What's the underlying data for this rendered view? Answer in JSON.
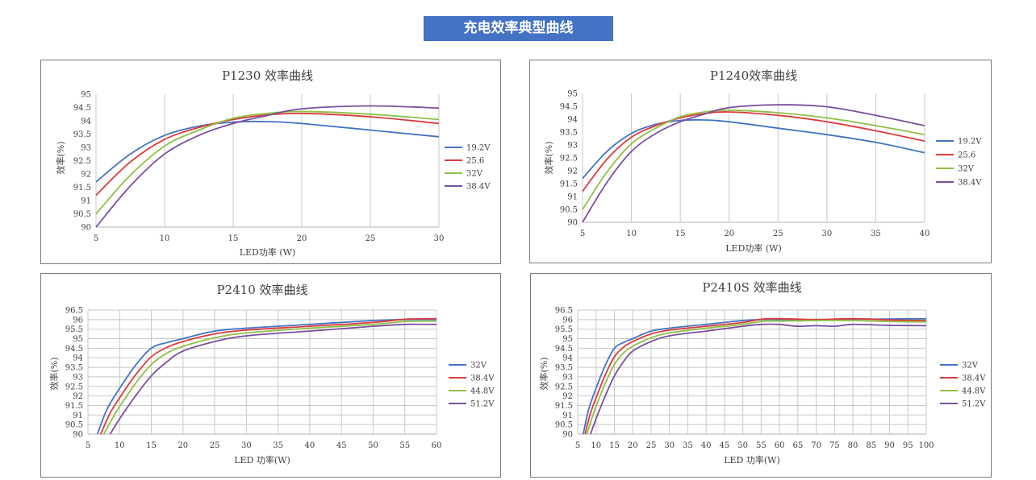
{
  "header": {
    "title": "充电效率典型曲线"
  },
  "chart_data": [
    {
      "type": "line",
      "title": "P1230 效率曲线",
      "xlabel": "LED功率 (W)",
      "ylabel": "效率(%)",
      "xlim": [
        5,
        30
      ],
      "ylim": [
        90,
        95
      ],
      "x_ticks": [
        "5",
        "10",
        "15",
        "20",
        "25",
        "30"
      ],
      "y_ticks": [
        "90",
        "90.5",
        "91",
        "91.5",
        "92",
        "92.5",
        "93",
        "93.5",
        "94",
        "94.5",
        "95"
      ],
      "grid": "vertical",
      "legend": "right",
      "colors": [
        "#4472c4",
        "#dc3b3b",
        "#8fc045",
        "#7a4f9e"
      ],
      "series": [
        {
          "name": "19.2V",
          "x": [
            5,
            7.5,
            10,
            12.5,
            15,
            17.5,
            20,
            25,
            30
          ],
          "values": [
            91.7,
            92.75,
            93.45,
            93.8,
            93.95,
            93.97,
            93.9,
            93.65,
            93.4
          ]
        },
        {
          "name": "25.6",
          "x": [
            5,
            7.5,
            10,
            12.5,
            15,
            17.5,
            20,
            25,
            30
          ],
          "values": [
            91.2,
            92.45,
            93.3,
            93.75,
            94.05,
            94.22,
            94.28,
            94.15,
            93.9
          ]
        },
        {
          "name": "32V",
          "x": [
            5,
            7.5,
            10,
            12.5,
            15,
            17.5,
            20,
            25,
            30
          ],
          "values": [
            90.5,
            91.95,
            93.05,
            93.65,
            94.1,
            94.28,
            94.35,
            94.25,
            94.05
          ]
        },
        {
          "name": "38.4V",
          "x": [
            5,
            7.5,
            10,
            12.5,
            15,
            17.5,
            20,
            25,
            30
          ],
          "values": [
            90.0,
            91.55,
            92.75,
            93.45,
            93.9,
            94.2,
            94.45,
            94.56,
            94.48
          ]
        }
      ]
    },
    {
      "type": "line",
      "title": "P1240效率曲线",
      "xlabel": "LED功率 (W)",
      "ylabel": "效率(%)",
      "xlim": [
        5,
        40
      ],
      "ylim": [
        90,
        95
      ],
      "x_ticks": [
        "5",
        "10",
        "15",
        "20",
        "25",
        "30",
        "35",
        "40"
      ],
      "y_ticks": [
        "90",
        "90.5",
        "91",
        "91.5",
        "92",
        "92.5",
        "93",
        "93.5",
        "94",
        "94.5",
        "95"
      ],
      "grid": "vertical",
      "legend": "right",
      "colors": [
        "#4472c4",
        "#dc3b3b",
        "#8fc045",
        "#7a4f9e"
      ],
      "series": [
        {
          "name": "19.2V",
          "x": [
            5,
            7.5,
            10,
            12.5,
            15,
            17.5,
            20,
            25,
            30,
            35,
            40
          ],
          "values": [
            91.7,
            92.75,
            93.45,
            93.8,
            93.95,
            93.97,
            93.9,
            93.65,
            93.4,
            93.1,
            92.7
          ]
        },
        {
          "name": "25.6",
          "x": [
            5,
            7.5,
            10,
            12.5,
            15,
            17.5,
            20,
            25,
            30,
            35,
            40
          ],
          "values": [
            91.2,
            92.45,
            93.3,
            93.75,
            94.05,
            94.22,
            94.28,
            94.15,
            93.9,
            93.55,
            93.15
          ]
        },
        {
          "name": "32V",
          "x": [
            5,
            7.5,
            10,
            12.5,
            15,
            17.5,
            20,
            25,
            30,
            35,
            40
          ],
          "values": [
            90.5,
            91.95,
            93.05,
            93.65,
            94.1,
            94.28,
            94.35,
            94.25,
            94.05,
            93.75,
            93.4
          ]
        },
        {
          "name": "38.4V",
          "x": [
            5,
            7.5,
            10,
            12.5,
            15,
            17.5,
            20,
            25,
            30,
            35,
            40
          ],
          "values": [
            90.0,
            91.55,
            92.75,
            93.45,
            93.9,
            94.2,
            94.45,
            94.56,
            94.48,
            94.15,
            93.75
          ]
        }
      ]
    },
    {
      "type": "line",
      "title": "P2410 效率曲线",
      "xlabel": "LED 功率(W)",
      "ylabel": "效率(%)",
      "xlim": [
        5,
        60
      ],
      "ylim": [
        90,
        96.5
      ],
      "x_ticks": [
        "5",
        "10",
        "15",
        "20",
        "25",
        "30",
        "35",
        "40",
        "45",
        "50",
        "55",
        "60"
      ],
      "y_ticks": [
        "90",
        "90.5",
        "91",
        "91.5",
        "92",
        "92.5",
        "93",
        "93.5",
        "94",
        "94.5",
        "95",
        "95.5",
        "96",
        "96.5"
      ],
      "grid": "both",
      "legend": "right",
      "colors": [
        "#4472c4",
        "#dc3b3b",
        "#8fc045",
        "#7a4f9e"
      ],
      "series": [
        {
          "name": "32V",
          "x": [
            6.5,
            8,
            10,
            12.5,
            15,
            17.5,
            20,
            25,
            30,
            40,
            50,
            55,
            60
          ],
          "values": [
            90.0,
            91.3,
            92.4,
            93.6,
            94.5,
            94.8,
            95.0,
            95.4,
            95.55,
            95.75,
            95.95,
            96.0,
            96.0
          ]
        },
        {
          "name": "38.4V",
          "x": [
            7,
            8.5,
            10,
            12.5,
            15,
            17.5,
            20,
            25,
            30,
            40,
            50,
            55,
            60
          ],
          "values": [
            90.0,
            91.1,
            91.9,
            93.1,
            94.05,
            94.55,
            94.85,
            95.25,
            95.45,
            95.65,
            95.85,
            96.02,
            96.05
          ]
        },
        {
          "name": "44.8V",
          "x": [
            7.5,
            9,
            10,
            12.5,
            15,
            17.5,
            20,
            25,
            30,
            40,
            50,
            55,
            60
          ],
          "values": [
            90.0,
            90.9,
            91.45,
            92.65,
            93.65,
            94.25,
            94.6,
            95.05,
            95.3,
            95.55,
            95.75,
            95.9,
            95.92
          ]
        },
        {
          "name": "51.2V",
          "x": [
            8.5,
            10,
            12.5,
            15,
            17.5,
            20,
            25,
            30,
            40,
            50,
            55,
            60
          ],
          "values": [
            90.0,
            90.8,
            92.0,
            93.05,
            93.8,
            94.35,
            94.85,
            95.15,
            95.4,
            95.65,
            95.75,
            95.75
          ]
        }
      ]
    },
    {
      "type": "line",
      "title": "P2410S  效率曲线",
      "xlabel": "LED 功率(W)",
      "ylabel": "效率(%)",
      "xlim": [
        5,
        100
      ],
      "ylim": [
        90,
        96.5
      ],
      "x_ticks": [
        "5",
        "10",
        "15",
        "20",
        "25",
        "30",
        "35",
        "40",
        "45",
        "50",
        "55",
        "60",
        "65",
        "70",
        "75",
        "80",
        "85",
        "90",
        "95",
        "100"
      ],
      "y_ticks": [
        "90",
        "90.5",
        "91",
        "91.5",
        "92",
        "92.5",
        "93",
        "93.5",
        "94",
        "94.5",
        "95",
        "95.5",
        "96",
        "96.5"
      ],
      "grid": "both",
      "legend": "right",
      "colors": [
        "#4472c4",
        "#dc3b3b",
        "#8fc045",
        "#7a4f9e"
      ],
      "series": [
        {
          "name": "32V",
          "x": [
            6.5,
            8,
            10,
            12.5,
            15,
            17.5,
            20,
            25,
            30,
            40,
            50,
            55,
            60,
            70,
            80,
            90,
            100
          ],
          "values": [
            90.0,
            91.3,
            92.4,
            93.6,
            94.5,
            94.8,
            95.0,
            95.4,
            95.55,
            95.75,
            95.95,
            96.0,
            96.0,
            96.0,
            96.02,
            96.03,
            96.05
          ]
        },
        {
          "name": "38.4V",
          "x": [
            7,
            8.5,
            10,
            12.5,
            15,
            17.5,
            20,
            25,
            30,
            40,
            50,
            55,
            60,
            70,
            80,
            90,
            100
          ],
          "values": [
            90.0,
            91.1,
            91.9,
            93.1,
            94.05,
            94.55,
            94.85,
            95.25,
            95.45,
            95.65,
            95.85,
            96.02,
            96.05,
            96.0,
            96.05,
            95.98,
            95.95
          ]
        },
        {
          "name": "44.8V",
          "x": [
            7.5,
            9,
            10,
            12.5,
            15,
            17.5,
            20,
            25,
            30,
            40,
            50,
            55,
            60,
            70,
            80,
            90,
            100
          ],
          "values": [
            90.0,
            90.9,
            91.45,
            92.65,
            93.65,
            94.25,
            94.6,
            95.05,
            95.3,
            95.55,
            95.75,
            95.9,
            95.92,
            95.95,
            95.95,
            95.9,
            95.88
          ]
        },
        {
          "name": "51.2V",
          "x": [
            8.5,
            10,
            12.5,
            15,
            17.5,
            20,
            25,
            30,
            40,
            50,
            55,
            60,
            65,
            70,
            75,
            80,
            90,
            100
          ],
          "values": [
            90.0,
            90.8,
            92.0,
            93.05,
            93.8,
            94.35,
            94.85,
            95.15,
            95.4,
            95.65,
            95.75,
            95.75,
            95.65,
            95.68,
            95.65,
            95.75,
            95.7,
            95.68
          ]
        }
      ]
    }
  ]
}
